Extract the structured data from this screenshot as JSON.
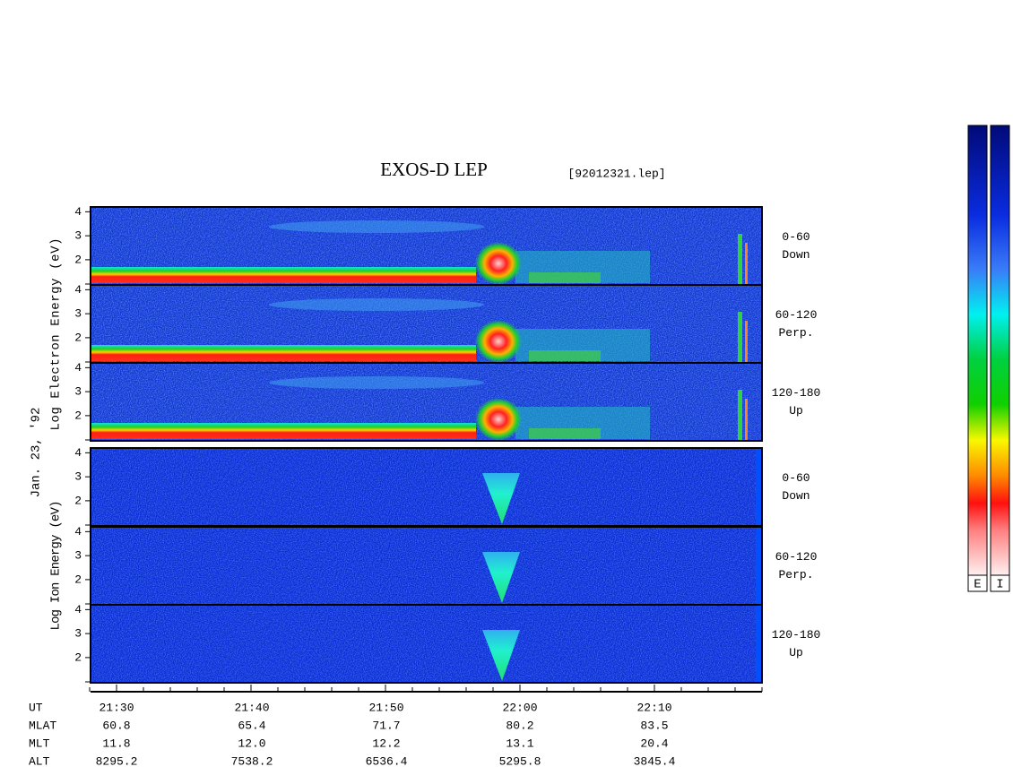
{
  "title": "EXOS-D LEP",
  "file": "[92012321.lep]",
  "date_label": "Jan. 23, '92",
  "electron_axis_label": "Log Electron Energy (eV)",
  "ion_axis_label": "Log Ion Energy (eV)",
  "energy_ticks": [
    4,
    3,
    2
  ],
  "panels": [
    {
      "species": "electron",
      "label": "0-60",
      "sublabel": "Down"
    },
    {
      "species": "electron",
      "label": "60-120",
      "sublabel": "Perp."
    },
    {
      "species": "electron",
      "label": "120-180",
      "sublabel": "Up"
    },
    {
      "species": "ion",
      "label": "0-60",
      "sublabel": "Down"
    },
    {
      "species": "ion",
      "label": "60-120",
      "sublabel": "Perp."
    },
    {
      "species": "ion",
      "label": "120-180",
      "sublabel": "Up"
    }
  ],
  "ephemeris": {
    "rows": [
      {
        "name": "UT",
        "values": [
          "21:30",
          "21:40",
          "21:50",
          "22:00",
          "22:10"
        ]
      },
      {
        "name": "MLAT",
        "values": [
          "60.8",
          "65.4",
          "71.7",
          "80.2",
          "83.5"
        ]
      },
      {
        "name": "MLT",
        "values": [
          "11.8",
          "12.0",
          "12.2",
          "13.1",
          "20.4"
        ]
      },
      {
        "name": "ALT",
        "values": [
          "8295.2",
          "7538.2",
          "6536.4",
          "5295.8",
          "3845.4"
        ]
      }
    ]
  },
  "colorbar_labels": [
    "E",
    "I"
  ]
}
